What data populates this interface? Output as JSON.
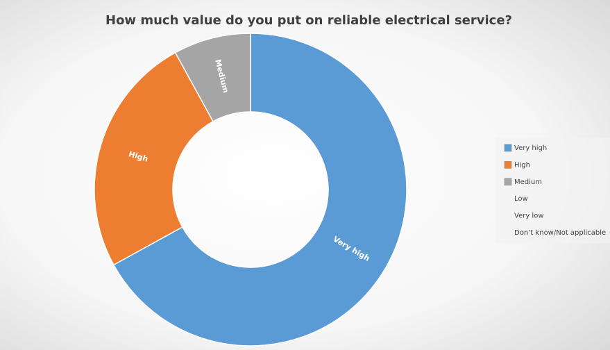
{
  "chart_data": {
    "type": "donut",
    "title": "How much value do you put on reliable electrical service?",
    "categories": [
      "Very high",
      "High",
      "Medium",
      "Low",
      "Very low",
      "Don’t know/Not applicable"
    ],
    "values": [
      67,
      25,
      8,
      0,
      0,
      0
    ],
    "colors": [
      "#5b9bd5",
      "#ed7d31",
      "#a5a5a5"
    ]
  }
}
